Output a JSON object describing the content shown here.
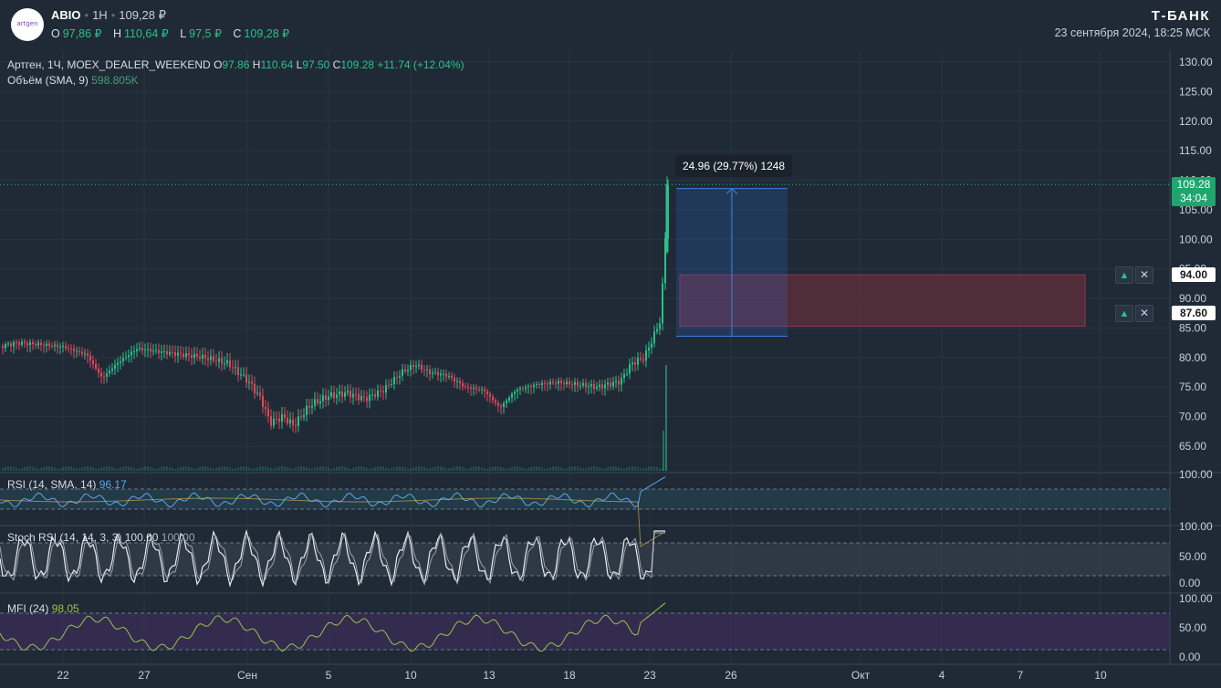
{
  "header": {
    "logo_text": "artgen",
    "ticker": "ABIO",
    "timeframe": "1H",
    "last_price": "109,28 ₽",
    "ohlc": [
      {
        "label": "O",
        "value": "97,86 ₽"
      },
      {
        "label": "H",
        "value": "110,64 ₽"
      },
      {
        "label": "L",
        "value": "97,5 ₽"
      },
      {
        "label": "C",
        "value": "109,28 ₽"
      }
    ],
    "brand": "Т-БАНК",
    "datetime": "23 сентября 2024, 18:25 МСК"
  },
  "legend": {
    "instrument": "Артген, 1Ч, MOEX_DEALER_WEEKEND",
    "o_label": "O",
    "o_value": "97.86",
    "h_label": "H",
    "h_value": "110.64",
    "l_label": "L",
    "l_value": "97.50",
    "c_label": "C",
    "c_value": "109.28",
    "change": "+11.74 (+12.04%)",
    "volume_label": "Объём (SMA, 9)",
    "volume_value": "598.805K"
  },
  "price_axis": {
    "ticks": [
      "130.00",
      "125.00",
      "120.00",
      "115.00",
      "110.00",
      "105.00",
      "100.00",
      "95.00",
      "90.00",
      "85.00",
      "80.00",
      "75.00",
      "70.00",
      "65.00"
    ],
    "last_price": "109.28",
    "countdown": "34:04",
    "volume_tick": "100.00"
  },
  "alerts": [
    {
      "price": "94.00"
    },
    {
      "price": "87.60"
    }
  ],
  "measure": {
    "label": "24.96 (29.77%) 1248"
  },
  "rsi": {
    "label": "RSI (14, SMA, 14)",
    "value": "96.17",
    "color": "#5aa8e8"
  },
  "stoch": {
    "label": "Stoch RSI (14, 14, 3, 3)",
    "k_value": "100.00",
    "d_value": "100.00",
    "ticks": [
      "100.00",
      "50.00",
      "0.00"
    ]
  },
  "mfi": {
    "label": "MFI (24)",
    "value": "98.05",
    "color": "#9bc24a",
    "ticks": [
      "100.00",
      "50.00",
      "0.00"
    ]
  },
  "time_axis": [
    "22",
    "27",
    "Сен",
    "5",
    "10",
    "13",
    "18",
    "23",
    "26",
    "Окт",
    "4",
    "7",
    "10"
  ],
  "colors": {
    "up": "#2bc08a",
    "down": "#e0475a",
    "background": "#1f2a36",
    "measure": "#2f6fd6",
    "alert_zone": "#7a2e3c"
  }
}
